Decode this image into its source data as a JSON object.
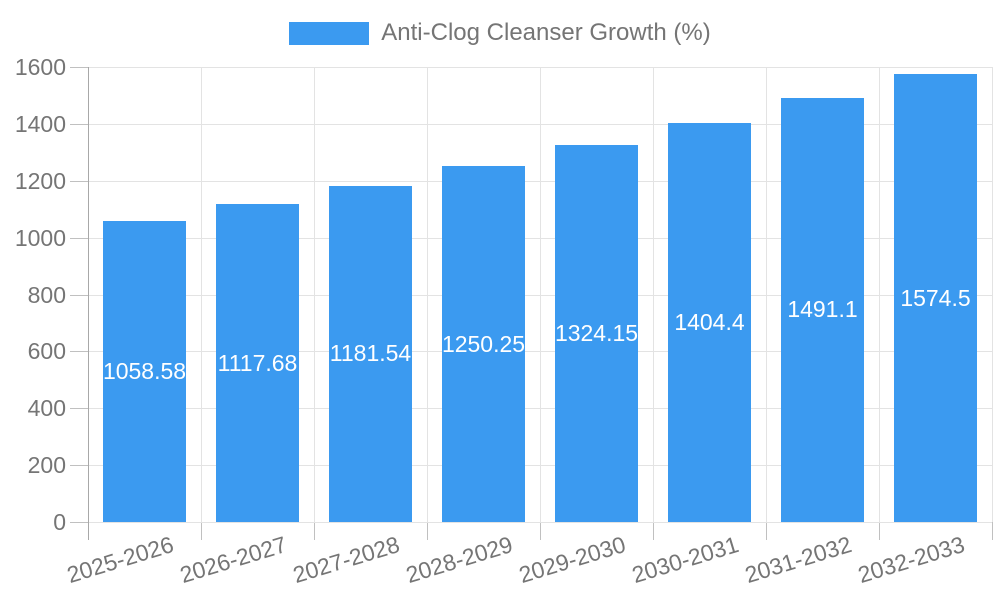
{
  "chart_data": {
    "type": "bar",
    "title": "Anti-Clog Cleanser Growth (%)",
    "legend_position": "top",
    "categories": [
      "2025-2026",
      "2026-2027",
      "2027-2028",
      "2028-2029",
      "2029-2030",
      "2030-2031",
      "2031-2032",
      "2032-2033"
    ],
    "values": [
      1058.58,
      1117.68,
      1181.54,
      1250.25,
      1324.15,
      1404.4,
      1491.1,
      1574.5
    ],
    "value_labels": [
      "1058.58",
      "1117.68",
      "1181.54",
      "1250.25",
      "1324.15",
      "1404.4",
      "1491.1",
      "1574.5"
    ],
    "xlabel": "",
    "ylabel": "",
    "ylim": [
      0,
      1600
    ],
    "y_ticks": [
      0,
      200,
      400,
      600,
      800,
      1000,
      1200,
      1400,
      1600
    ],
    "grid": true,
    "colors": {
      "bar": "#3b9af0",
      "value_label": "#ffffff",
      "axis_text": "#757575",
      "gridline": "#e3e3e3",
      "tick": "#c0c0c0",
      "axis_line": "#a8a8a8",
      "background": "#ffffff"
    }
  }
}
